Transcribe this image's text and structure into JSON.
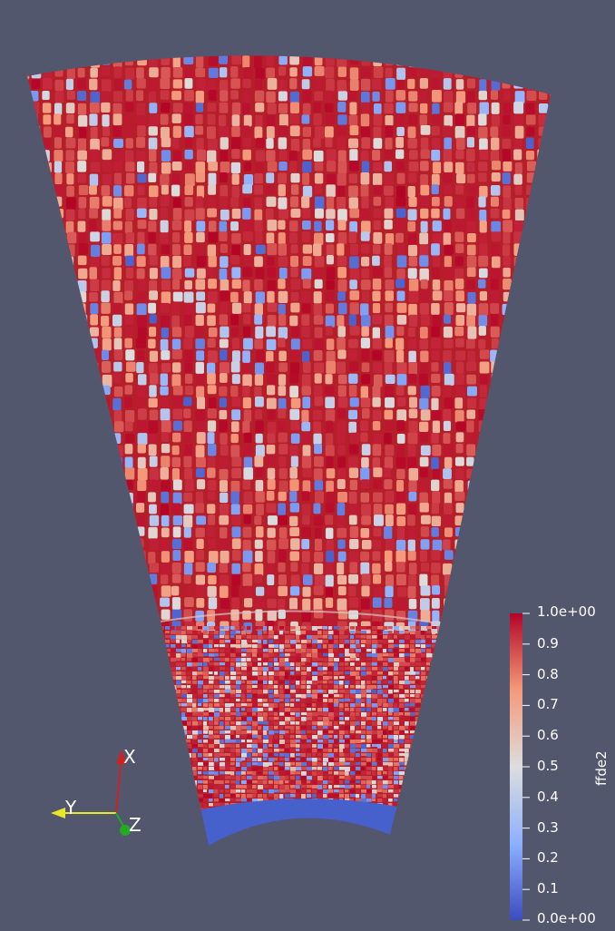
{
  "colors": {
    "background": "#52576e",
    "colormap_low": "#3b4cc0",
    "colormap_mid": "#dddddd",
    "colormap_high": "#b40426",
    "x_axis": "#cc2222",
    "y_axis": "#e6e62a",
    "z_axis": "#22aa22"
  },
  "scalar_bar": {
    "title": "ffde2",
    "max_label": "1.0e+00",
    "min_label": "0.0e+00",
    "tick_labels": [
      "0.9",
      "0.8",
      "0.7",
      "0.6",
      "0.5",
      "0.4",
      "0.3",
      "0.2",
      "0.1"
    ]
  },
  "orientation_axes": {
    "x_label": "X",
    "y_label": "Y",
    "z_label": "Z"
  }
}
